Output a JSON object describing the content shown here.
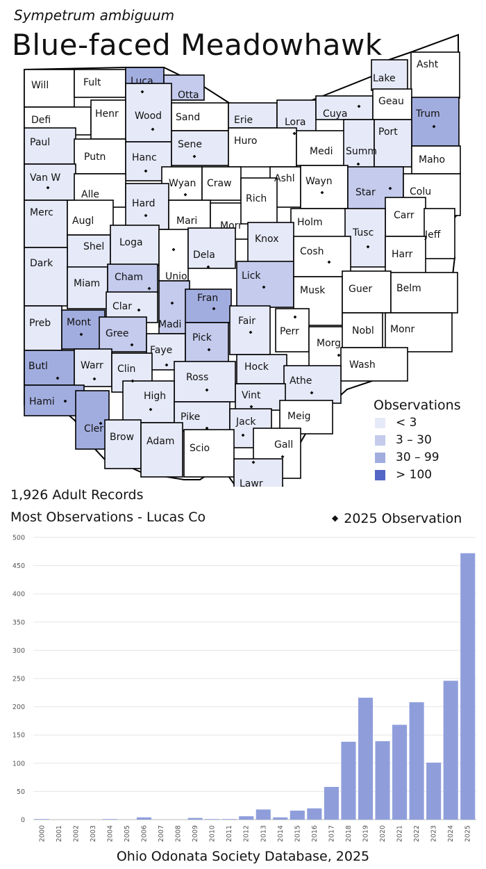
{
  "header": {
    "scientific_name": "Sympetrum ambiguum",
    "common_name": "Blue-faced Meadowhawk"
  },
  "summary": {
    "records": "1,926 Adult Records",
    "most": "Most Observations - Lucas Co",
    "obs_2025": "2025  Observation"
  },
  "legend": {
    "title": "Observations",
    "items": [
      {
        "label": "< 3",
        "color": "#e6e9f7"
      },
      {
        "label": "3 – 30",
        "color": "#c4cbec"
      },
      {
        "label": "30 – 99",
        "color": "#a2addf"
      },
      {
        "label": "> 100",
        "color": "#5366c6"
      }
    ]
  },
  "map": {
    "counties": [
      {
        "name": "Will",
        "level": 0,
        "dot": false
      },
      {
        "name": "Fult",
        "level": 0,
        "dot": false
      },
      {
        "name": "Luca",
        "level": 3,
        "dot": true
      },
      {
        "name": "Otta",
        "level": 2,
        "dot": false
      },
      {
        "name": "Lake",
        "level": 1,
        "dot": false
      },
      {
        "name": "Asht",
        "level": 0,
        "dot": false
      },
      {
        "name": "Defi",
        "level": 0,
        "dot": false
      },
      {
        "name": "Henr",
        "level": 0,
        "dot": false
      },
      {
        "name": "Wood",
        "level": 1,
        "dot": true
      },
      {
        "name": "Sand",
        "level": 0,
        "dot": false
      },
      {
        "name": "Erie",
        "level": 1,
        "dot": false
      },
      {
        "name": "Lora",
        "level": 1,
        "dot": true
      },
      {
        "name": "Cuya",
        "level": 1,
        "dot": true
      },
      {
        "name": "Geau",
        "level": 0,
        "dot": false
      },
      {
        "name": "Trum",
        "level": 3,
        "dot": true
      },
      {
        "name": "Paul",
        "level": 1,
        "dot": false
      },
      {
        "name": "Putn",
        "level": 0,
        "dot": false
      },
      {
        "name": "Hanc",
        "level": 1,
        "dot": true
      },
      {
        "name": "Sene",
        "level": 1,
        "dot": true
      },
      {
        "name": "Huro",
        "level": 0,
        "dot": false
      },
      {
        "name": "Medi",
        "level": 0,
        "dot": false
      },
      {
        "name": "Summ",
        "level": 1,
        "dot": true
      },
      {
        "name": "Port",
        "level": 1,
        "dot": false
      },
      {
        "name": "Maho",
        "level": 0,
        "dot": false
      },
      {
        "name": "Van W",
        "level": 1,
        "dot": true
      },
      {
        "name": "Alle",
        "level": 0,
        "dot": false
      },
      {
        "name": "Wyan",
        "level": 0,
        "dot": true
      },
      {
        "name": "Craw",
        "level": 0,
        "dot": false
      },
      {
        "name": "Ashl",
        "level": 0,
        "dot": false
      },
      {
        "name": "Wayn",
        "level": 0,
        "dot": true
      },
      {
        "name": "Star",
        "level": 2,
        "dot": true
      },
      {
        "name": "Colu",
        "level": 0,
        "dot": false
      },
      {
        "name": "Merc",
        "level": 1,
        "dot": false
      },
      {
        "name": "Augl",
        "level": 0,
        "dot": false
      },
      {
        "name": "Hard",
        "level": 1,
        "dot": true
      },
      {
        "name": "Mari",
        "level": 0,
        "dot": false
      },
      {
        "name": "Morr",
        "level": 0,
        "dot": false
      },
      {
        "name": "Rich",
        "level": 0,
        "dot": false
      },
      {
        "name": "Holm",
        "level": 0,
        "dot": false
      },
      {
        "name": "Carr",
        "level": 0,
        "dot": false
      },
      {
        "name": "Jeff",
        "level": 0,
        "dot": false
      },
      {
        "name": "Shel",
        "level": 1,
        "dot": false
      },
      {
        "name": "Loga",
        "level": 1,
        "dot": false
      },
      {
        "name": "Unio",
        "level": 0,
        "dot": true
      },
      {
        "name": "Dela",
        "level": 1,
        "dot": true
      },
      {
        "name": "Knox",
        "level": 1,
        "dot": false
      },
      {
        "name": "Tusc",
        "level": 1,
        "dot": true
      },
      {
        "name": "Harr",
        "level": 0,
        "dot": false
      },
      {
        "name": "Dark",
        "level": 1,
        "dot": false
      },
      {
        "name": "Miam",
        "level": 1,
        "dot": false
      },
      {
        "name": "Cham",
        "level": 2,
        "dot": true
      },
      {
        "name": "Lick",
        "level": 2,
        "dot": true
      },
      {
        "name": "Cosh",
        "level": 0,
        "dot": true
      },
      {
        "name": "Musk",
        "level": 0,
        "dot": false
      },
      {
        "name": "Guer",
        "level": 0,
        "dot": false
      },
      {
        "name": "Belm",
        "level": 0,
        "dot": false
      },
      {
        "name": "Clar",
        "level": 1,
        "dot": true
      },
      {
        "name": "Madi",
        "level": 2,
        "dot": true
      },
      {
        "name": "Fran",
        "level": 3,
        "dot": true
      },
      {
        "name": "Preb",
        "level": 1,
        "dot": false
      },
      {
        "name": "Mont",
        "level": 3,
        "dot": true
      },
      {
        "name": "Gree",
        "level": 2,
        "dot": true
      },
      {
        "name": "Faye",
        "level": 1,
        "dot": true
      },
      {
        "name": "Pick",
        "level": 2,
        "dot": true
      },
      {
        "name": "Fair",
        "level": 1,
        "dot": true
      },
      {
        "name": "Perr",
        "level": 0,
        "dot": true
      },
      {
        "name": "Morg",
        "level": 0,
        "dot": true
      },
      {
        "name": "Nobl",
        "level": 0,
        "dot": false
      },
      {
        "name": "Monr",
        "level": 0,
        "dot": false
      },
      {
        "name": "Butl",
        "level": 3,
        "dot": true
      },
      {
        "name": "Warr",
        "level": 1,
        "dot": true
      },
      {
        "name": "Clin",
        "level": 1,
        "dot": true
      },
      {
        "name": "Hock",
        "level": 1,
        "dot": false
      },
      {
        "name": "Wash",
        "level": 0,
        "dot": false
      },
      {
        "name": "Ross",
        "level": 1,
        "dot": true
      },
      {
        "name": "Athe",
        "level": 1,
        "dot": true
      },
      {
        "name": "Hami",
        "level": 3,
        "dot": true
      },
      {
        "name": "Cler",
        "level": 3,
        "dot": true
      },
      {
        "name": "High",
        "level": 1,
        "dot": true
      },
      {
        "name": "Vint",
        "level": 1,
        "dot": true
      },
      {
        "name": "Pike",
        "level": 1,
        "dot": true
      },
      {
        "name": "Jack",
        "level": 1,
        "dot": true
      },
      {
        "name": "Meig",
        "level": 0,
        "dot": false
      },
      {
        "name": "Brow",
        "level": 1,
        "dot": false
      },
      {
        "name": "Adam",
        "level": 1,
        "dot": false
      },
      {
        "name": "Scio",
        "level": 0,
        "dot": false
      },
      {
        "name": "Gall",
        "level": 0,
        "dot": true
      },
      {
        "name": "Lawr",
        "level": 1,
        "dot": true
      }
    ]
  },
  "chart_data": {
    "type": "bar",
    "categories": [
      "2000",
      "2001",
      "2002",
      "2003",
      "2004",
      "2005",
      "2006",
      "2007",
      "2008",
      "2009",
      "2010",
      "2011",
      "2012",
      "2013",
      "2014",
      "2015",
      "2016",
      "2017",
      "2018",
      "2019",
      "2020",
      "2021",
      "2022",
      "2023",
      "2024",
      "2025"
    ],
    "values": [
      1,
      0,
      0,
      0,
      1,
      0,
      4,
      0,
      0,
      3,
      1,
      1,
      6,
      18,
      4,
      16,
      20,
      58,
      138,
      216,
      139,
      168,
      208,
      101,
      246,
      472
    ],
    "ylim": [
      0,
      500
    ],
    "yticks": [
      0,
      50,
      100,
      150,
      200,
      250,
      300,
      350,
      400,
      450,
      500
    ],
    "bar_color": "#8f9edb",
    "grid": true,
    "source": "Ohio Odonata Society Database, 2025"
  }
}
